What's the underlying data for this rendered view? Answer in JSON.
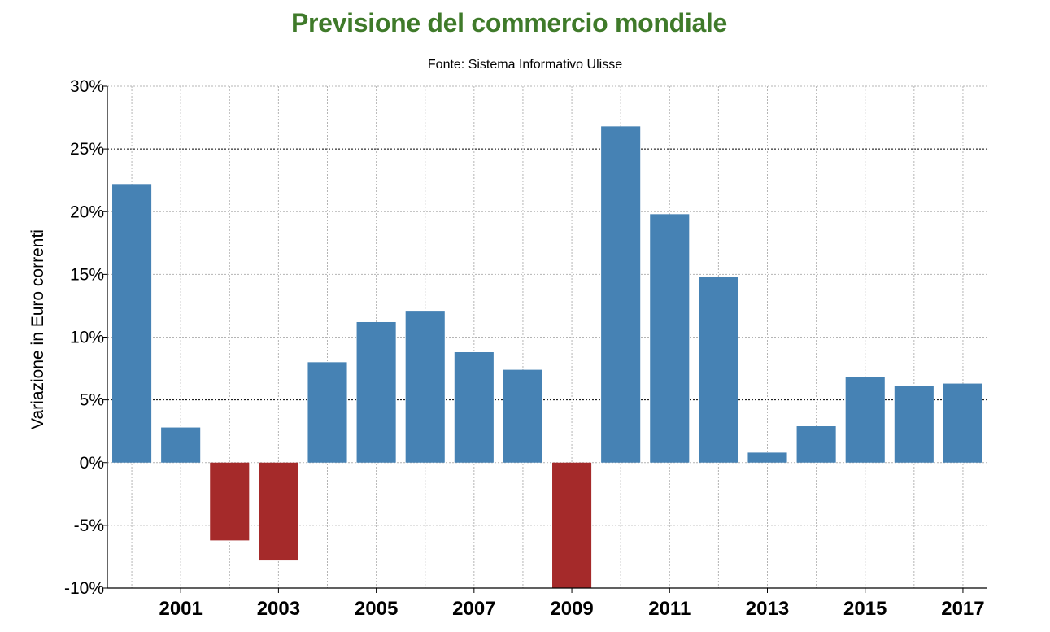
{
  "chart_data": {
    "type": "bar",
    "title": "Previsione del commercio mondiale",
    "subtitle": "Fonte: Sistema Informativo Ulisse",
    "xlabel": "",
    "ylabel": "Variazione in Euro correnti",
    "categories": [
      "2000",
      "2001",
      "2002",
      "2003",
      "2004",
      "2005",
      "2006",
      "2007",
      "2008",
      "2009",
      "2010",
      "2011",
      "2012",
      "2013",
      "2014",
      "2015",
      "2016",
      "2017"
    ],
    "values": [
      22.2,
      2.8,
      -6.2,
      -7.8,
      8.0,
      11.2,
      12.1,
      8.8,
      7.4,
      -10.0,
      26.8,
      19.8,
      14.8,
      0.8,
      2.9,
      6.8,
      6.1,
      6.3
    ],
    "ylim": [
      -10,
      30
    ],
    "y_ticks": [
      -10,
      -5,
      0,
      5,
      10,
      15,
      20,
      25,
      30
    ],
    "y_tick_labels": [
      "-10%",
      "-5%",
      "0%",
      "5%",
      "10%",
      "15%",
      "20%",
      "25%",
      "30%"
    ],
    "x_tick_labels": [
      "2001",
      "2003",
      "2005",
      "2007",
      "2009",
      "2011",
      "2013",
      "2015",
      "2017"
    ],
    "grid": true,
    "colors": {
      "title": "#3f7a2a",
      "positive": "#4682b4",
      "negative": "#a52a2a",
      "grid": "#b4b4b4",
      "major_grid": "#000000",
      "axis": "#000000"
    }
  }
}
